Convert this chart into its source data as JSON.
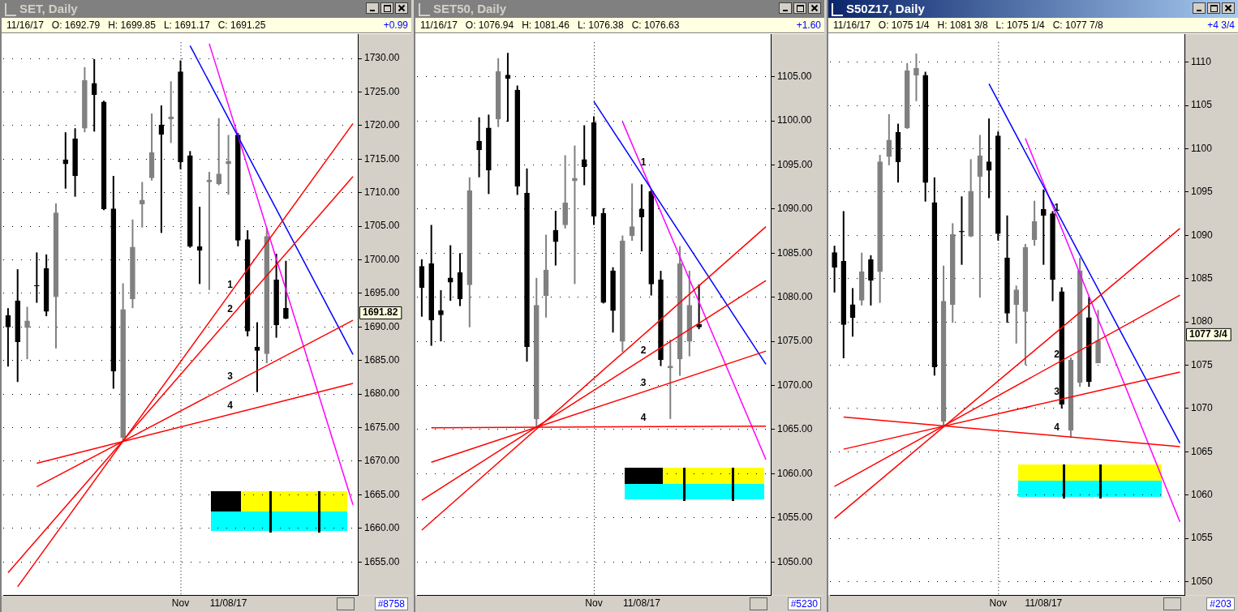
{
  "chart_data": [
    {
      "type": "candlestick",
      "title": "SET, Daily",
      "subtitle": "11/16/17   O: 1692.79   H: 1699.85   L: 1691.17   C: 1691.25",
      "colors": [
        "#000000",
        "#000000",
        "#808080",
        "#000000",
        "#000000",
        "#808080",
        "#000000",
        "#000000",
        "#808080",
        "#000000",
        "#000000",
        "#000000",
        "#808080",
        "#808080",
        "#808080",
        "#808080",
        "#000000",
        "#808080",
        "#000000",
        "#000000",
        "#000000",
        "#808080",
        "#808080",
        "#808080",
        "#000000",
        "#000000",
        "#000000",
        "#808080",
        "#000000",
        "#000000",
        null,
        null,
        null,
        null,
        null,
        null,
        null
      ],
      "categories": [
        null,
        null,
        null,
        null,
        null,
        null,
        null,
        null,
        null,
        null,
        null,
        null,
        null,
        null,
        null,
        null,
        null,
        null,
        "Nov",
        null,
        null,
        null,
        null,
        "11/08/17",
        null,
        null,
        null,
        null,
        null,
        null,
        null,
        null,
        null,
        null,
        null,
        null,
        null
      ],
      "ohlc": [
        [
          1691.7,
          1692.8,
          1684.1,
          1690.0
        ],
        [
          1693.9,
          1698.6,
          1681.8,
          1687.8
        ],
        [
          1689.9,
          1693.0,
          1685.2,
          1690.9
        ],
        [
          1696.2,
          1701.1,
          1693.6,
          1696.1
        ],
        [
          1698.7,
          1700.8,
          1691.6,
          1692.3
        ],
        [
          1694.5,
          1708.4,
          1686.8,
          1707.0
        ],
        [
          1714.9,
          1719.0,
          1710.6,
          1714.3
        ],
        [
          1718.0,
          1719.6,
          1709.4,
          1712.5
        ],
        [
          1719.6,
          1728.7,
          1719.0,
          1726.7
        ],
        [
          1726.3,
          1729.9,
          1719.1,
          1724.6
        ],
        [
          1723.5,
          1723.7,
          1707.4,
          1707.6
        ],
        [
          1707.6,
          1712.5,
          1680.8,
          1683.4
        ],
        [
          1673.5,
          1696.5,
          1673.0,
          1692.6
        ],
        [
          1694.2,
          1706.0,
          1692.8,
          1701.9
        ],
        [
          1708.3,
          1711.6,
          1704.8,
          1708.9
        ],
        [
          1712.2,
          1721.8,
          1711.8,
          1716.0
        ],
        [
          1720.1,
          1723.0,
          1704.0,
          1718.7
        ],
        [
          1721.0,
          1726.6,
          1717.4,
          1721.3
        ],
        [
          1728.0,
          1729.7,
          1713.5,
          1714.6
        ],
        [
          1715.5,
          1716.2,
          1701.8,
          1702.0
        ],
        [
          1702.0,
          1707.9,
          1696.4,
          1701.4
        ],
        [
          1711.6,
          1713.1,
          1695.5,
          1711.9
        ],
        [
          1711.3,
          1721.1,
          1711.1,
          1712.8
        ],
        [
          1714.3,
          1718.6,
          1709.7,
          1714.7
        ],
        [
          1718.6,
          1718.9,
          1702.0,
          1702.9
        ],
        [
          1703.0,
          1704.4,
          1688.6,
          1689.4
        ],
        [
          1687.0,
          1690.7,
          1680.3,
          1686.5
        ],
        [
          1686.0,
          1704.8,
          1684.6,
          1703.5
        ],
        [
          1697.0,
          1700.9,
          1688.4,
          1690.3
        ],
        [
          1692.79,
          1699.85,
          1691.17,
          1691.25
        ],
        null,
        null,
        null,
        null,
        null,
        null,
        null
      ],
      "series": [
        {
          "type": "line",
          "name": "1",
          "color": "#ff0000",
          "values": [
            null,
            1651.3,
            null,
            null,
            null,
            null,
            null,
            null,
            null,
            null,
            null,
            null,
            null,
            null,
            null,
            null,
            null,
            null,
            null,
            null,
            null,
            null,
            null,
            null,
            null,
            null,
            null,
            null,
            null,
            null,
            null,
            null,
            null,
            null,
            null,
            null,
            1720.3
          ]
        },
        {
          "type": "line",
          "name": "2",
          "color": "#ff0000",
          "values": [
            1653.4,
            null,
            null,
            null,
            null,
            null,
            null,
            null,
            null,
            null,
            null,
            null,
            null,
            null,
            null,
            null,
            null,
            null,
            null,
            null,
            null,
            null,
            null,
            null,
            null,
            null,
            null,
            null,
            null,
            null,
            null,
            null,
            null,
            null,
            null,
            null,
            1712.4
          ]
        },
        {
          "type": "line",
          "name": "3",
          "color": "#ff0000",
          "values": [
            null,
            null,
            null,
            1666.2,
            null,
            null,
            null,
            null,
            null,
            null,
            null,
            null,
            null,
            null,
            null,
            null,
            null,
            null,
            null,
            null,
            null,
            null,
            null,
            null,
            null,
            null,
            null,
            null,
            null,
            null,
            null,
            null,
            null,
            null,
            null,
            null,
            1691.0
          ]
        },
        {
          "type": "line",
          "name": "4",
          "color": "#ff0000",
          "values": [
            null,
            null,
            null,
            1669.7,
            null,
            null,
            null,
            null,
            null,
            null,
            null,
            null,
            null,
            null,
            null,
            null,
            null,
            null,
            null,
            null,
            null,
            null,
            null,
            null,
            null,
            null,
            null,
            null,
            null,
            null,
            null,
            null,
            null,
            null,
            null,
            null,
            1681.6
          ]
        },
        {
          "type": "line",
          "color": "#0000ff",
          "values": [
            null,
            null,
            null,
            null,
            null,
            null,
            null,
            null,
            null,
            null,
            null,
            null,
            null,
            null,
            null,
            null,
            null,
            null,
            null,
            1731.9,
            null,
            null,
            null,
            null,
            null,
            null,
            null,
            null,
            null,
            null,
            null,
            null,
            null,
            null,
            null,
            null,
            1685.9
          ]
        },
        {
          "type": "line",
          "color": "#ff00ff",
          "values": [
            null,
            null,
            null,
            null,
            null,
            null,
            null,
            null,
            null,
            null,
            null,
            null,
            null,
            null,
            null,
            null,
            null,
            null,
            null,
            null,
            null,
            1732.2,
            null,
            null,
            null,
            null,
            null,
            null,
            null,
            null,
            null,
            null,
            null,
            null,
            null,
            null,
            1663.5
          ]
        }
      ],
      "ylim": [
        1650,
        1732.4
      ],
      "yticks": [
        {
          "value": 1655,
          "label": "1655.00"
        },
        {
          "value": 1660,
          "label": "1660.00"
        },
        {
          "value": 1665,
          "label": "1665.00"
        },
        {
          "value": 1670,
          "label": "1670.00"
        },
        {
          "value": 1675,
          "label": "1675.00"
        },
        {
          "value": 1680,
          "label": "1680.00"
        },
        {
          "value": 1685,
          "label": "1685.00"
        },
        {
          "value": 1690,
          "label": "1690.00"
        },
        {
          "value": 1695,
          "label": "1695.00"
        },
        {
          "value": 1700,
          "label": "1700.00"
        },
        {
          "value": 1705,
          "label": "1705.00"
        },
        {
          "value": 1710,
          "label": "1710.00"
        },
        {
          "value": 1715,
          "label": "1715.00"
        },
        {
          "value": 1720,
          "label": "1720.00"
        },
        {
          "value": 1725,
          "label": "1725.00"
        },
        {
          "value": 1730,
          "label": "1730.00"
        }
      ],
      "grid": "y",
      "ref_lines": [
        {
          "axis": "x",
          "value": "Nov",
          "color": "#000000",
          "line_style": "dotted"
        }
      ],
      "annotations": [
        "+0.99",
        "#8758",
        "1691.82"
      ]
    },
    {
      "type": "candlestick",
      "title": "SET50, Daily",
      "subtitle": "11/16/17   O: 1076.94   H: 1081.46   L: 1076.38   C: 1076.63",
      "colors": [
        "#000000",
        "#000000",
        "#000000",
        "#000000",
        "#000000",
        "#808080",
        "#000000",
        "#000000",
        "#808080",
        "#000000",
        "#000000",
        "#000000",
        "#808080",
        "#808080",
        "#000000",
        "#808080",
        "#808080",
        "#000000",
        "#000000",
        "#000000",
        "#000000",
        "#808080",
        "#808080",
        "#000000",
        "#000000",
        "#000000",
        "#808080",
        "#808080",
        "#808080",
        "#000000",
        null,
        null,
        null,
        null,
        null,
        null,
        null
      ],
      "categories": [
        null,
        null,
        null,
        null,
        null,
        null,
        null,
        null,
        null,
        null,
        null,
        null,
        null,
        null,
        null,
        null,
        null,
        null,
        "Nov",
        null,
        null,
        null,
        null,
        "11/08/17",
        null,
        null,
        null,
        null,
        null,
        null,
        null,
        null,
        null,
        null,
        null,
        null,
        null
      ],
      "ohlc": [
        [
          1083.5,
          1084.3,
          1077.8,
          1081.1
        ],
        [
          1083.8,
          1088.2,
          1074.5,
          1077.4
        ],
        [
          1078.5,
          1080.8,
          1075.0,
          1078.0
        ],
        [
          1082.2,
          1085.9,
          1079.6,
          1081.7
        ],
        [
          1082.8,
          1085.0,
          1079.0,
          1079.8
        ],
        [
          1081.4,
          1093.6,
          1076.6,
          1092.1
        ],
        [
          1097.7,
          1100.4,
          1093.6,
          1096.7
        ],
        [
          1099.2,
          1100.7,
          1091.7,
          1094.4
        ],
        [
          1100.2,
          1107.1,
          1099.3,
          1105.6
        ],
        [
          1105.2,
          1107.7,
          1099.9,
          1104.8
        ],
        [
          1103.5,
          1104.0,
          1091.6,
          1092.6
        ],
        [
          1091.8,
          1094.6,
          1072.7,
          1074.4
        ],
        [
          1066.2,
          1082.2,
          1065.3,
          1079.1
        ],
        [
          1080.2,
          1087.1,
          1077.7,
          1083.1
        ],
        [
          1087.6,
          1089.8,
          1083.6,
          1086.3
        ],
        [
          1088.2,
          1096.1,
          1087.8,
          1090.7
        ],
        [
          1093.2,
          1097.2,
          1081.5,
          1093.5
        ],
        [
          1095.6,
          1099.5,
          1092.7,
          1094.8
        ],
        [
          1099.8,
          1100.5,
          1088.2,
          1089.2
        ],
        [
          1089.5,
          1090.1,
          1079.3,
          1079.4
        ],
        [
          1083.0,
          1083.4,
          1076.0,
          1078.5
        ],
        [
          1075.0,
          1087.0,
          1073.8,
          1086.4
        ],
        [
          1087.0,
          1092.9,
          1086.4,
          1088.0
        ],
        [
          1090.0,
          1092.8,
          1085.2,
          1089.1
        ],
        [
          1092.0,
          1092.2,
          1080.2,
          1081.5
        ],
        [
          1082.0,
          1083.0,
          1072.2,
          1072.9
        ],
        [
          1072.0,
          1075.2,
          1066.2,
          1072.2
        ],
        [
          1073.0,
          1085.8,
          1071.1,
          1083.8
        ],
        [
          1075.0,
          1083.0,
          1073.3,
          1079.1
        ],
        [
          1076.94,
          1081.46,
          1076.38,
          1076.63
        ],
        null,
        null,
        null,
        null,
        null,
        null,
        null
      ],
      "series": [
        {
          "type": "line",
          "color": "#ff0000",
          "values": [
            1053.6,
            null,
            null,
            null,
            null,
            null,
            null,
            null,
            null,
            null,
            null,
            null,
            null,
            null,
            null,
            null,
            null,
            null,
            null,
            null,
            null,
            null,
            null,
            null,
            null,
            null,
            null,
            null,
            null,
            null,
            null,
            null,
            null,
            null,
            null,
            null,
            1088.0
          ]
        },
        {
          "type": "line",
          "name": "2",
          "color": "#ff0000",
          "values": [
            1057.0,
            null,
            null,
            null,
            null,
            null,
            null,
            null,
            null,
            null,
            null,
            null,
            null,
            null,
            null,
            null,
            null,
            null,
            null,
            null,
            null,
            null,
            null,
            null,
            null,
            null,
            null,
            null,
            null,
            null,
            null,
            null,
            null,
            null,
            null,
            null,
            1081.9
          ]
        },
        {
          "type": "line",
          "name": "3",
          "color": "#ff0000",
          "values": [
            null,
            1061.3,
            null,
            null,
            null,
            null,
            null,
            null,
            null,
            null,
            null,
            null,
            null,
            null,
            null,
            null,
            null,
            null,
            null,
            null,
            null,
            null,
            null,
            null,
            null,
            null,
            null,
            null,
            null,
            null,
            null,
            null,
            null,
            null,
            null,
            null,
            1073.9
          ]
        },
        {
          "type": "line",
          "name": "4",
          "color": "#ff0000",
          "values": [
            null,
            1065.2,
            null,
            null,
            null,
            null,
            null,
            null,
            null,
            null,
            null,
            null,
            null,
            null,
            null,
            null,
            null,
            null,
            null,
            null,
            null,
            null,
            null,
            null,
            null,
            null,
            null,
            null,
            null,
            null,
            null,
            null,
            null,
            null,
            null,
            null,
            1065.4
          ]
        },
        {
          "type": "line",
          "color": "#0000ff",
          "values": [
            null,
            null,
            null,
            null,
            null,
            null,
            null,
            null,
            null,
            null,
            null,
            null,
            null,
            null,
            null,
            null,
            null,
            null,
            1102.2,
            null,
            null,
            null,
            null,
            null,
            null,
            null,
            null,
            null,
            null,
            null,
            null,
            null,
            null,
            null,
            null,
            null,
            1072.4
          ]
        },
        {
          "type": "line",
          "name": "1",
          "color": "#ff00ff",
          "values": [
            null,
            null,
            null,
            null,
            null,
            null,
            null,
            null,
            null,
            null,
            null,
            null,
            null,
            null,
            null,
            null,
            null,
            null,
            null,
            null,
            null,
            1099.9,
            null,
            null,
            null,
            null,
            null,
            null,
            null,
            null,
            null,
            null,
            null,
            null,
            null,
            null,
            1061.6
          ]
        }
      ],
      "ylim": [
        1046.2,
        1108.9
      ],
      "yticks": [
        {
          "value": 1050,
          "label": "1050.00"
        },
        {
          "value": 1055,
          "label": "1055.00"
        },
        {
          "value": 1060,
          "label": "1060.00"
        },
        {
          "value": 1065,
          "label": "1065.00"
        },
        {
          "value": 1070,
          "label": "1070.00"
        },
        {
          "value": 1075,
          "label": "1075.00"
        },
        {
          "value": 1080,
          "label": "1080.00"
        },
        {
          "value": 1085,
          "label": "1085.00"
        },
        {
          "value": 1090,
          "label": "1090.00"
        },
        {
          "value": 1095,
          "label": "1095.00"
        },
        {
          "value": 1100,
          "label": "1100.00"
        },
        {
          "value": 1105,
          "label": "1105.00"
        }
      ],
      "grid": "y",
      "ref_lines": [
        {
          "axis": "x",
          "value": "Nov",
          "color": "#000000",
          "line_style": "dotted"
        }
      ],
      "annotations": [
        "+1.60",
        "#5230"
      ]
    },
    {
      "type": "candlestick",
      "title": "S50Z17, Daily",
      "subtitle": "11/16/17   O: 1075 1/4   H: 1081 3/8   L: 1075 1/4   C: 1077 7/8",
      "colors": [
        "#000000",
        "#000000",
        "#000000",
        "#808080",
        "#000000",
        "#808080",
        "#808080",
        "#000000",
        "#808080",
        "#808080",
        "#000000",
        "#000000",
        "#808080",
        "#808080",
        "#000000",
        "#808080",
        "#808080",
        "#000000",
        "#000000",
        "#000000",
        "#808080",
        "#808080",
        "#808080",
        "#000000",
        "#000000",
        "#000000",
        "#808080",
        "#808080",
        "#000000",
        "#808080",
        null,
        null,
        null,
        null,
        null,
        null,
        null,
        null,
        null
      ],
      "categories": [
        null,
        null,
        null,
        null,
        null,
        null,
        null,
        null,
        null,
        null,
        null,
        null,
        null,
        null,
        null,
        null,
        null,
        null,
        "Nov",
        null,
        null,
        null,
        null,
        "11/08/17",
        null,
        null,
        null,
        null,
        null,
        null,
        null,
        null,
        null,
        null,
        null,
        null,
        null,
        null,
        null
      ],
      "ohlc": [
        [
          1088.0,
          1088.8,
          1083.4,
          1086.3
        ],
        [
          1087.0,
          1092.8,
          1075.8,
          1079.7
        ],
        [
          1082.0,
          1083.9,
          1078.3,
          1080.5
        ],
        [
          1082.5,
          1088.0,
          1081.9,
          1085.8
        ],
        [
          1087.2,
          1087.7,
          1081.9,
          1084.8
        ],
        [
          1085.8,
          1099.3,
          1082.2,
          1098.5
        ],
        [
          1099.1,
          1104.0,
          1098.1,
          1101.0
        ],
        [
          1101.9,
          1102.9,
          1096.1,
          1098.5
        ],
        [
          1102.4,
          1109.9,
          1102.3,
          1109.0
        ],
        [
          1108.5,
          1111.0,
          1105.5,
          1109.3
        ],
        [
          1108.5,
          1108.9,
          1093.9,
          1096.1
        ],
        [
          1093.8,
          1096.7,
          1073.8,
          1074.8
        ],
        [
          1068.5,
          1086.5,
          1067.9,
          1082.4
        ],
        [
          1082.0,
          1091.4,
          1079.9,
          1090.1
        ],
        [
          1090.5,
          1094.5,
          1086.6,
          1090.4
        ],
        [
          1089.9,
          1098.8,
          1089.8,
          1095.1
        ],
        [
          1096.8,
          1101.6,
          1082.8,
          1099.2
        ],
        [
          1098.5,
          1103.5,
          1094.3,
          1097.5
        ],
        [
          1101.5,
          1102.0,
          1089.4,
          1090.2
        ],
        [
          1087.4,
          1092.3,
          1079.9,
          1081.0
        ],
        [
          1082.0,
          1084.2,
          1077.5,
          1083.7
        ],
        [
          1081.2,
          1089.0,
          1075.0,
          1088.6
        ],
        [
          1089.5,
          1094.0,
          1088.8,
          1091.6
        ],
        [
          1093.0,
          1095.3,
          1086.6,
          1092.3
        ],
        [
          1092.5,
          1092.8,
          1082.4,
          1084.9
        ],
        [
          1083.5,
          1084.0,
          1070.0,
          1070.5
        ],
        [
          1067.5,
          1075.9,
          1066.6,
          1075.6
        ],
        [
          1073.0,
          1087.4,
          1072.5,
          1085.9
        ],
        [
          1080.5,
          1082.9,
          1072.5,
          1073.1
        ],
        [
          1075.25,
          1081.375,
          1075.25,
          1077.875
        ],
        null,
        null,
        null,
        null,
        null,
        null,
        null,
        null,
        null
      ],
      "series": [
        {
          "type": "line",
          "color": "#ff0000",
          "values": [
            1057.3,
            null,
            null,
            null,
            null,
            null,
            null,
            null,
            null,
            null,
            null,
            null,
            null,
            null,
            null,
            null,
            null,
            null,
            null,
            null,
            null,
            null,
            null,
            null,
            null,
            null,
            null,
            null,
            null,
            null,
            null,
            null,
            null,
            null,
            null,
            null,
            null,
            null,
            1090.8
          ]
        },
        {
          "type": "line",
          "name": "2",
          "color": "#ff0000",
          "values": [
            1061.0,
            null,
            null,
            null,
            null,
            null,
            null,
            null,
            null,
            null,
            null,
            null,
            null,
            null,
            null,
            null,
            null,
            null,
            null,
            null,
            null,
            null,
            null,
            null,
            null,
            null,
            null,
            null,
            null,
            null,
            null,
            null,
            null,
            null,
            null,
            null,
            null,
            null,
            1083.1
          ]
        },
        {
          "type": "line",
          "name": "3",
          "color": "#ff0000",
          "values": [
            null,
            1065.3,
            null,
            null,
            null,
            null,
            null,
            null,
            null,
            null,
            null,
            null,
            null,
            null,
            null,
            null,
            null,
            null,
            null,
            null,
            null,
            null,
            null,
            null,
            null,
            null,
            null,
            null,
            null,
            null,
            null,
            null,
            null,
            null,
            null,
            null,
            null,
            null,
            1074.2
          ]
        },
        {
          "type": "line",
          "name": "4",
          "color": "#ff0000",
          "values": [
            null,
            1069.0,
            null,
            null,
            null,
            null,
            null,
            null,
            null,
            null,
            null,
            null,
            null,
            null,
            null,
            null,
            null,
            null,
            null,
            null,
            null,
            null,
            null,
            null,
            null,
            null,
            null,
            null,
            null,
            null,
            null,
            null,
            null,
            null,
            null,
            null,
            null,
            null,
            1065.6
          ]
        },
        {
          "type": "line",
          "color": "#0000ff",
          "values": [
            null,
            null,
            null,
            null,
            null,
            null,
            null,
            null,
            null,
            null,
            null,
            null,
            null,
            null,
            null,
            null,
            null,
            1107.5,
            null,
            null,
            null,
            null,
            null,
            null,
            null,
            null,
            null,
            null,
            null,
            null,
            null,
            null,
            null,
            null,
            null,
            null,
            null,
            null,
            1066.0
          ]
        },
        {
          "type": "line",
          "name": "1",
          "color": "#ff00ff",
          "values": [
            null,
            null,
            null,
            null,
            null,
            null,
            null,
            null,
            null,
            null,
            null,
            null,
            null,
            null,
            null,
            null,
            null,
            null,
            null,
            null,
            null,
            1101.2,
            null,
            null,
            null,
            null,
            null,
            null,
            null,
            null,
            null,
            null,
            null,
            null,
            null,
            null,
            null,
            null,
            1056.9
          ]
        }
      ],
      "ylim": [
        1048.4,
        1112.3
      ],
      "yticks": [
        1050,
        1055,
        1060,
        1065,
        1070,
        1075,
        1080,
        1085,
        1090,
        1095,
        1100,
        1105,
        1110
      ],
      "grid": "y",
      "ref_lines": [
        {
          "axis": "x",
          "value": "Nov",
          "color": "#000000",
          "line_style": "dotted"
        }
      ],
      "annotations": [
        "+4 3/4",
        "#203",
        "1077 3/4"
      ]
    }
  ]
}
